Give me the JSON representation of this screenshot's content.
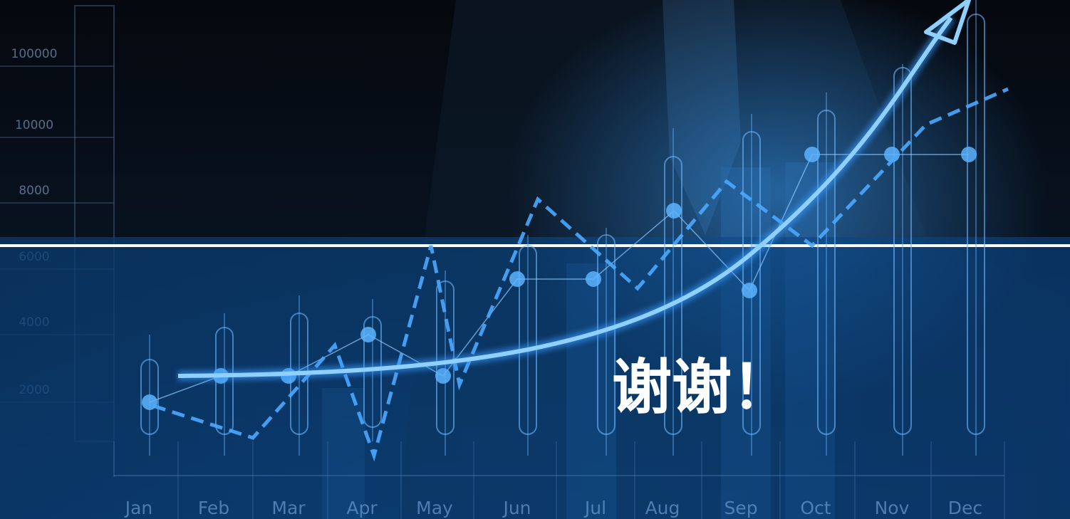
{
  "title": "谢谢！",
  "background": {
    "axis_labels": [
      "100000",
      "10000",
      "8000",
      "6000",
      "4000",
      "2000"
    ],
    "months": [
      "Jan",
      "Feb",
      "Mar",
      "Apr",
      "May",
      "Jun",
      "Jul",
      "Aug",
      "Sep",
      "Oct",
      "Nov",
      "Dec"
    ]
  }
}
